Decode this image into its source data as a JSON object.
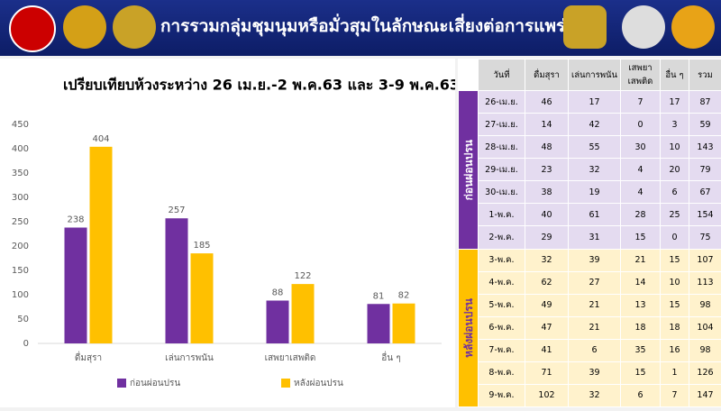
{
  "header": {
    "title": "การรวมกลุ่มชุมนุมหรือมั่วสุมในลักษณะเสี่ยงต่อการแพร่เชื้อ"
  },
  "chart_data": {
    "type": "bar",
    "title": "เปรียบเทียบห้วงระหว่าง 26 เม.ย.-2 พ.ค.63 และ 3-9 พ.ค.63",
    "categories": [
      "ดื่มสุรา",
      "เล่นการพนัน",
      "เสพยาเสพติด",
      "อื่น ๆ"
    ],
    "series": [
      {
        "name": "ก่อนผ่อนปรน",
        "color": "#7030a0",
        "values": [
          238,
          257,
          88,
          81
        ]
      },
      {
        "name": "หลังผ่อนปรน",
        "color": "#ffc000",
        "values": [
          404,
          185,
          122,
          82
        ]
      }
    ],
    "ylim": [
      0,
      450
    ],
    "yticks": [
      0,
      50,
      100,
      150,
      200,
      250,
      300,
      350,
      400,
      450
    ],
    "grid": false,
    "legend": "bottom"
  },
  "table": {
    "columns": [
      "วันที่",
      "ดื่มสุรา",
      "เล่นการพนัน",
      "เสพยา เสพติด",
      "อื่น ๆ",
      "รวม"
    ],
    "groups": [
      {
        "label": "ก่อนผ่อนปรน",
        "rows": [
          [
            "26-เม.ย.",
            46,
            17,
            7,
            17,
            87
          ],
          [
            "27-เม.ย.",
            14,
            42,
            0,
            3,
            59
          ],
          [
            "28-เม.ย.",
            48,
            55,
            30,
            10,
            143
          ],
          [
            "29-เม.ย.",
            23,
            32,
            4,
            20,
            79
          ],
          [
            "30-เม.ย.",
            38,
            19,
            4,
            6,
            67
          ],
          [
            "1-พ.ค.",
            40,
            61,
            28,
            25,
            154
          ],
          [
            "2-พ.ค.",
            29,
            31,
            15,
            0,
            75
          ]
        ]
      },
      {
        "label": "หลังผ่อนปรน",
        "rows": [
          [
            "3-พ.ค.",
            32,
            39,
            21,
            15,
            107
          ],
          [
            "4-พ.ค.",
            62,
            27,
            14,
            10,
            113
          ],
          [
            "5-พ.ค.",
            49,
            21,
            13,
            15,
            98
          ],
          [
            "6-พ.ค.",
            47,
            21,
            18,
            18,
            104
          ],
          [
            "7-พ.ค.",
            41,
            6,
            35,
            16,
            98
          ],
          [
            "8-พ.ค.",
            71,
            39,
            15,
            1,
            126
          ],
          [
            "9-พ.ค.",
            102,
            32,
            6,
            7,
            147
          ]
        ]
      }
    ]
  }
}
